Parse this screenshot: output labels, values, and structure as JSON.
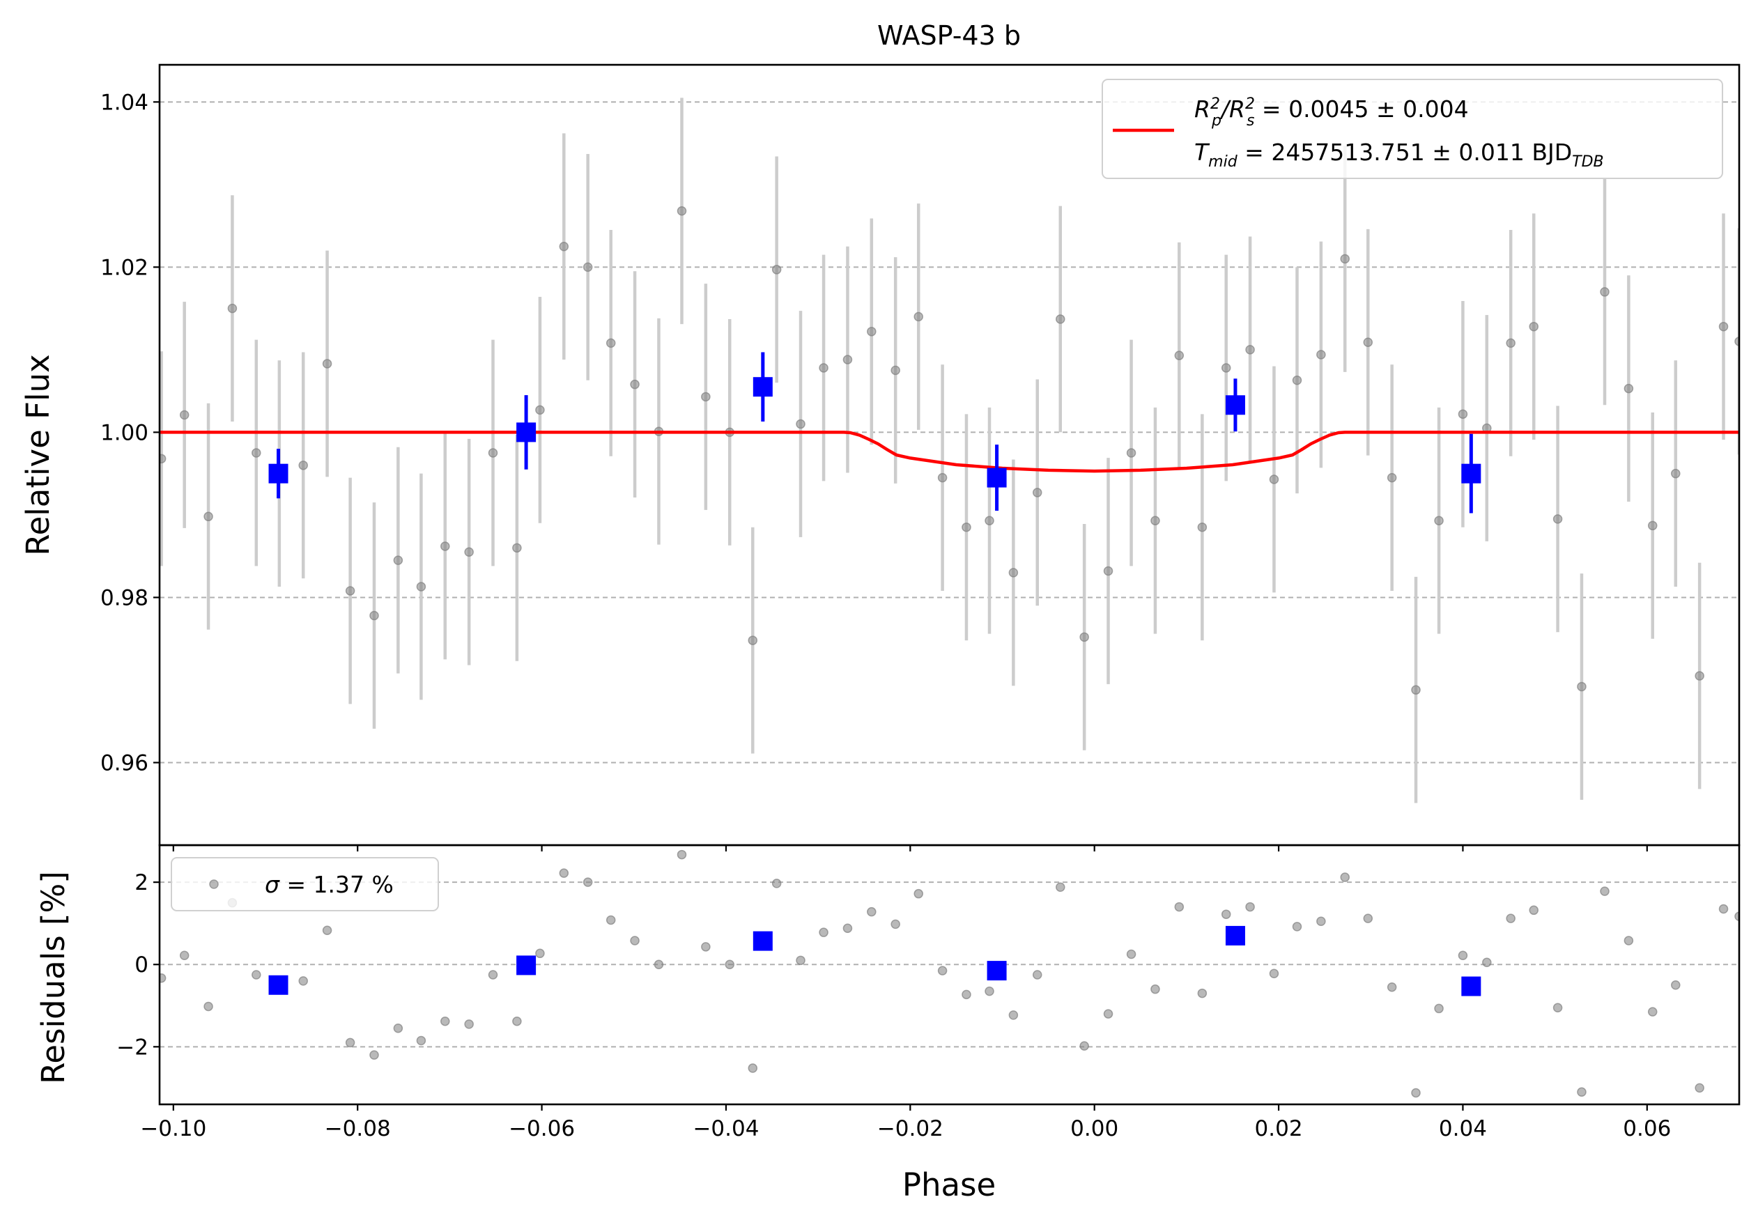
{
  "chart_data": [
    {
      "type": "scatter",
      "title": "WASP-43 b",
      "xlabel": "",
      "ylabel": "Relative Flux",
      "xlim": [
        -0.1015,
        0.07
      ],
      "ylim": [
        0.95,
        1.0445
      ],
      "x_ticks": [
        -0.1,
        -0.08,
        -0.06,
        -0.04,
        -0.02,
        0.0,
        0.02,
        0.04,
        0.06
      ],
      "x_tick_labels": [
        "−0.10",
        "−0.08",
        "−0.06",
        "−0.04",
        "−0.02",
        "0.00",
        "0.02",
        "0.04",
        "0.06"
      ],
      "y_ticks": [
        0.96,
        0.98,
        1.0,
        1.02,
        1.04
      ],
      "y_tick_labels": [
        "0.96",
        "0.98",
        "1.00",
        "1.02",
        "1.04"
      ],
      "grid": "horizontal dashed",
      "legend_position": "top-right",
      "legend": {
        "line1": {
          "main": "R",
          "sub1": "p",
          "sup1": "2",
          "slash": "/R",
          "sub2": "s",
          "sup2": "2",
          "rest": " = 0.0045 ± 0.004"
        },
        "line2": {
          "main": "T",
          "sub1": "mid",
          "rest": " = 2457513.751 ± 0.011 BJD",
          "sub2": "TDB"
        }
      },
      "colors": {
        "data": "#808080",
        "errorbar": "#cccccc",
        "binned": "#0000ff",
        "model": "#ff0000"
      },
      "series": [
        {
          "kind": "data",
          "points": [
            [
              -0.1013,
              0.9968,
              0.013
            ],
            [
              -0.0988,
              1.0021,
              0.0137
            ],
            [
              -0.0962,
              0.9898,
              0.0137
            ],
            [
              -0.0936,
              1.015,
              0.0137
            ],
            [
              -0.091,
              0.9975,
              0.0137
            ],
            [
              -0.0885,
              0.995,
              0.0137
            ],
            [
              -0.0859,
              0.996,
              0.0137
            ],
            [
              -0.0833,
              1.0083,
              0.0137
            ],
            [
              -0.0808,
              0.9808,
              0.0137
            ],
            [
              -0.0782,
              0.9778,
              0.0137
            ],
            [
              -0.0756,
              0.9845,
              0.0137
            ],
            [
              -0.0731,
              0.9813,
              0.0137
            ],
            [
              -0.0705,
              0.9862,
              0.0137
            ],
            [
              -0.0679,
              0.9855,
              0.0137
            ],
            [
              -0.0653,
              0.9975,
              0.0137
            ],
            [
              -0.0627,
              0.986,
              0.0137
            ],
            [
              -0.0602,
              1.0027,
              0.0137
            ],
            [
              -0.0576,
              1.0225,
              0.0137
            ],
            [
              -0.055,
              1.02,
              0.0137
            ],
            [
              -0.0525,
              1.0108,
              0.0137
            ],
            [
              -0.0499,
              1.0058,
              0.0137
            ],
            [
              -0.0473,
              1.0001,
              0.0137
            ],
            [
              -0.0448,
              1.0268,
              0.0137
            ],
            [
              -0.0422,
              1.0043,
              0.0137
            ],
            [
              -0.0396,
              1.0,
              0.0137
            ],
            [
              -0.0371,
              0.9748,
              0.0137
            ],
            [
              -0.0345,
              1.0197,
              0.0137
            ],
            [
              -0.0319,
              1.001,
              0.0137
            ],
            [
              -0.0294,
              1.0078,
              0.0137
            ],
            [
              -0.0268,
              1.0088,
              0.0137
            ],
            [
              -0.0242,
              1.0122,
              0.0137
            ],
            [
              -0.0216,
              1.0075,
              0.0137
            ],
            [
              -0.0191,
              1.014,
              0.0137
            ],
            [
              -0.0165,
              0.9945,
              0.0137
            ],
            [
              -0.0139,
              0.9885,
              0.0137
            ],
            [
              -0.0114,
              0.9893,
              0.0137
            ],
            [
              -0.0088,
              0.983,
              0.0137
            ],
            [
              -0.0062,
              0.9927,
              0.0137
            ],
            [
              -0.0037,
              1.0137,
              0.0137
            ],
            [
              -0.0011,
              0.9752,
              0.0137
            ],
            [
              0.0015,
              0.9832,
              0.0137
            ],
            [
              0.004,
              0.9975,
              0.0137
            ],
            [
              0.0066,
              0.9893,
              0.0137
            ],
            [
              0.0092,
              1.0093,
              0.0137
            ],
            [
              0.0117,
              0.9885,
              0.0137
            ],
            [
              0.0143,
              1.0078,
              0.0137
            ],
            [
              0.0169,
              1.01,
              0.0137
            ],
            [
              0.0195,
              0.9943,
              0.0137
            ],
            [
              0.022,
              1.0063,
              0.0137
            ],
            [
              0.0246,
              1.0094,
              0.0137
            ],
            [
              0.0272,
              1.021,
              0.0137
            ],
            [
              0.0297,
              1.0109,
              0.0137
            ],
            [
              0.0323,
              0.9945,
              0.0137
            ],
            [
              0.0349,
              0.9688,
              0.0137
            ],
            [
              0.0374,
              0.9893,
              0.0137
            ],
            [
              0.04,
              1.0022,
              0.0137
            ],
            [
              0.0426,
              1.0005,
              0.0137
            ],
            [
              0.0452,
              1.0108,
              0.0137
            ],
            [
              0.0477,
              1.0128,
              0.0137
            ],
            [
              0.0503,
              0.9895,
              0.0137
            ],
            [
              0.0529,
              0.9692,
              0.0137
            ],
            [
              0.0554,
              1.017,
              0.0137
            ],
            [
              0.058,
              1.0053,
              0.0137
            ],
            [
              0.0606,
              0.9887,
              0.0137
            ],
            [
              0.0631,
              0.995,
              0.0137
            ],
            [
              0.0657,
              0.9705,
              0.0137
            ],
            [
              0.0683,
              1.0128,
              0.0137
            ],
            [
              0.07,
              1.011,
              0.0137
            ]
          ]
        },
        {
          "kind": "binned",
          "points": [
            [
              -0.0886,
              0.995,
              0.003
            ],
            [
              -0.0617,
              1.0,
              0.0045
            ],
            [
              -0.036,
              1.0055,
              0.0042
            ],
            [
              -0.0106,
              0.9945,
              0.004
            ],
            [
              0.0153,
              1.0033,
              0.0032
            ],
            [
              0.0409,
              0.995,
              0.0048
            ]
          ]
        },
        {
          "kind": "model",
          "points": [
            [
              -0.1015,
              1.0
            ],
            [
              -0.0272,
              1.0
            ],
            [
              -0.0265,
              0.99995
            ],
            [
              -0.0255,
              0.99965
            ],
            [
              -0.0245,
              0.99915
            ],
            [
              -0.0235,
              0.9986
            ],
            [
              -0.0225,
              0.9979
            ],
            [
              -0.0215,
              0.99725
            ],
            [
              -0.02,
              0.99688
            ],
            [
              -0.015,
              0.99607
            ],
            [
              -0.01,
              0.99565
            ],
            [
              -0.005,
              0.9954
            ],
            [
              0.0,
              0.9953
            ],
            [
              0.005,
              0.9954
            ],
            [
              0.01,
              0.99565
            ],
            [
              0.015,
              0.99607
            ],
            [
              0.02,
              0.99688
            ],
            [
              0.0215,
              0.99725
            ],
            [
              0.0225,
              0.9979
            ],
            [
              0.0235,
              0.9986
            ],
            [
              0.0245,
              0.99915
            ],
            [
              0.0255,
              0.99965
            ],
            [
              0.0265,
              0.99995
            ],
            [
              0.0272,
              1.0
            ],
            [
              0.07,
              1.0
            ]
          ]
        }
      ]
    },
    {
      "type": "scatter",
      "title": "",
      "xlabel": "Phase",
      "ylabel": "Residuals [%]",
      "xlim": [
        -0.1015,
        0.07
      ],
      "ylim": [
        -3.4,
        2.9
      ],
      "x_ticks": [
        -0.1,
        -0.08,
        -0.06,
        -0.04,
        -0.02,
        0.0,
        0.02,
        0.04,
        0.06
      ],
      "x_tick_labels": [
        "−0.10",
        "−0.08",
        "−0.06",
        "−0.04",
        "−0.02",
        "0.00",
        "0.02",
        "0.04",
        "0.06"
      ],
      "y_ticks": [
        -2,
        0,
        2
      ],
      "y_tick_labels": [
        "−2",
        "0",
        "2"
      ],
      "grid": "horizontal dashed",
      "legend_position": "top-left",
      "legend": {
        "sigma_symbol": "σ",
        "text": " = 1.37 %"
      },
      "series": [
        {
          "kind": "data",
          "points": [
            [
              -0.1013,
              -0.33
            ],
            [
              -0.0988,
              0.22
            ],
            [
              -0.0962,
              -1.02
            ],
            [
              -0.0936,
              1.5
            ],
            [
              -0.091,
              -0.25
            ],
            [
              -0.0885,
              -0.5
            ],
            [
              -0.0859,
              -0.4
            ],
            [
              -0.0833,
              0.83
            ],
            [
              -0.0808,
              -1.9
            ],
            [
              -0.0782,
              -2.2
            ],
            [
              -0.0756,
              -1.55
            ],
            [
              -0.0731,
              -1.85
            ],
            [
              -0.0705,
              -1.38
            ],
            [
              -0.0679,
              -1.45
            ],
            [
              -0.0653,
              -0.25
            ],
            [
              -0.0627,
              -1.38
            ],
            [
              -0.0602,
              0.27
            ],
            [
              -0.0576,
              2.22
            ],
            [
              -0.055,
              2.0
            ],
            [
              -0.0525,
              1.08
            ],
            [
              -0.0499,
              0.58
            ],
            [
              -0.0473,
              0.0
            ],
            [
              -0.0448,
              2.67
            ],
            [
              -0.0422,
              0.43
            ],
            [
              -0.0396,
              0.0
            ],
            [
              -0.0371,
              -2.52
            ],
            [
              -0.0345,
              1.97
            ],
            [
              -0.0319,
              0.1
            ],
            [
              -0.0294,
              0.78
            ],
            [
              -0.0268,
              0.88
            ],
            [
              -0.0242,
              1.28
            ],
            [
              -0.0216,
              0.98
            ],
            [
              -0.0191,
              1.72
            ],
            [
              -0.0165,
              -0.15
            ],
            [
              -0.0139,
              -0.73
            ],
            [
              -0.0114,
              -0.65
            ],
            [
              -0.0088,
              -1.23
            ],
            [
              -0.0062,
              -0.25
            ],
            [
              -0.0037,
              1.88
            ],
            [
              -0.0011,
              -1.98
            ],
            [
              0.0015,
              -1.2
            ],
            [
              0.004,
              0.25
            ],
            [
              0.0066,
              -0.6
            ],
            [
              0.0092,
              1.4
            ],
            [
              0.0117,
              -0.7
            ],
            [
              0.0143,
              1.22
            ],
            [
              0.0169,
              1.4
            ],
            [
              0.0195,
              -0.22
            ],
            [
              0.022,
              0.92
            ],
            [
              0.0246,
              1.05
            ],
            [
              0.0272,
              2.12
            ],
            [
              0.0297,
              1.12
            ],
            [
              0.0323,
              -0.55
            ],
            [
              0.0349,
              -3.12
            ],
            [
              0.0374,
              -1.07
            ],
            [
              0.04,
              0.22
            ],
            [
              0.0426,
              0.05
            ],
            [
              0.0452,
              1.12
            ],
            [
              0.0477,
              1.32
            ],
            [
              0.0503,
              -1.05
            ],
            [
              0.0529,
              -3.1
            ],
            [
              0.0554,
              1.78
            ],
            [
              0.058,
              0.58
            ],
            [
              0.0606,
              -1.15
            ],
            [
              0.0631,
              -0.5
            ],
            [
              0.0657,
              -3.0
            ],
            [
              0.0683,
              1.35
            ],
            [
              0.07,
              1.17
            ]
          ]
        },
        {
          "kind": "binned",
          "points": [
            [
              -0.0886,
              -0.5
            ],
            [
              -0.0617,
              -0.02
            ],
            [
              -0.036,
              0.57
            ],
            [
              -0.0106,
              -0.15
            ],
            [
              0.0153,
              0.7
            ],
            [
              0.0409,
              -0.53
            ]
          ]
        }
      ]
    }
  ]
}
